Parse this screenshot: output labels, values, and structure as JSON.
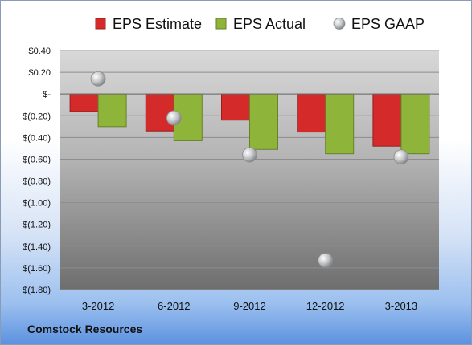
{
  "company": "Comstock Resources",
  "chart_data": {
    "type": "bar",
    "categories": [
      "3-2012",
      "6-2012",
      "9-2012",
      "12-2012",
      "3-2013"
    ],
    "series": [
      {
        "name": "EPS Estimate",
        "kind": "bar",
        "color": "#d42a2a",
        "values": [
          -0.16,
          -0.34,
          -0.24,
          -0.35,
          -0.48
        ]
      },
      {
        "name": "EPS Actual",
        "kind": "bar",
        "color": "#8fb43a",
        "values": [
          -0.3,
          -0.43,
          -0.51,
          -0.55,
          -0.55
        ]
      },
      {
        "name": "EPS GAAP",
        "kind": "scatter",
        "color": "#b9bcbe",
        "values": [
          0.14,
          -0.22,
          -0.56,
          -1.53,
          -0.58
        ]
      }
    ],
    "y_ticks": [
      "$0.40",
      "$0.20",
      "$-",
      "$(0.20)",
      "$(0.40)",
      "$(0.60)",
      "$(0.80)",
      "$(1.00)",
      "$(1.20)",
      "$(1.40)",
      "$(1.60)",
      "$(1.80)"
    ],
    "ylim": [
      -1.8,
      0.4
    ],
    "grid": true,
    "legend_position": "top"
  }
}
